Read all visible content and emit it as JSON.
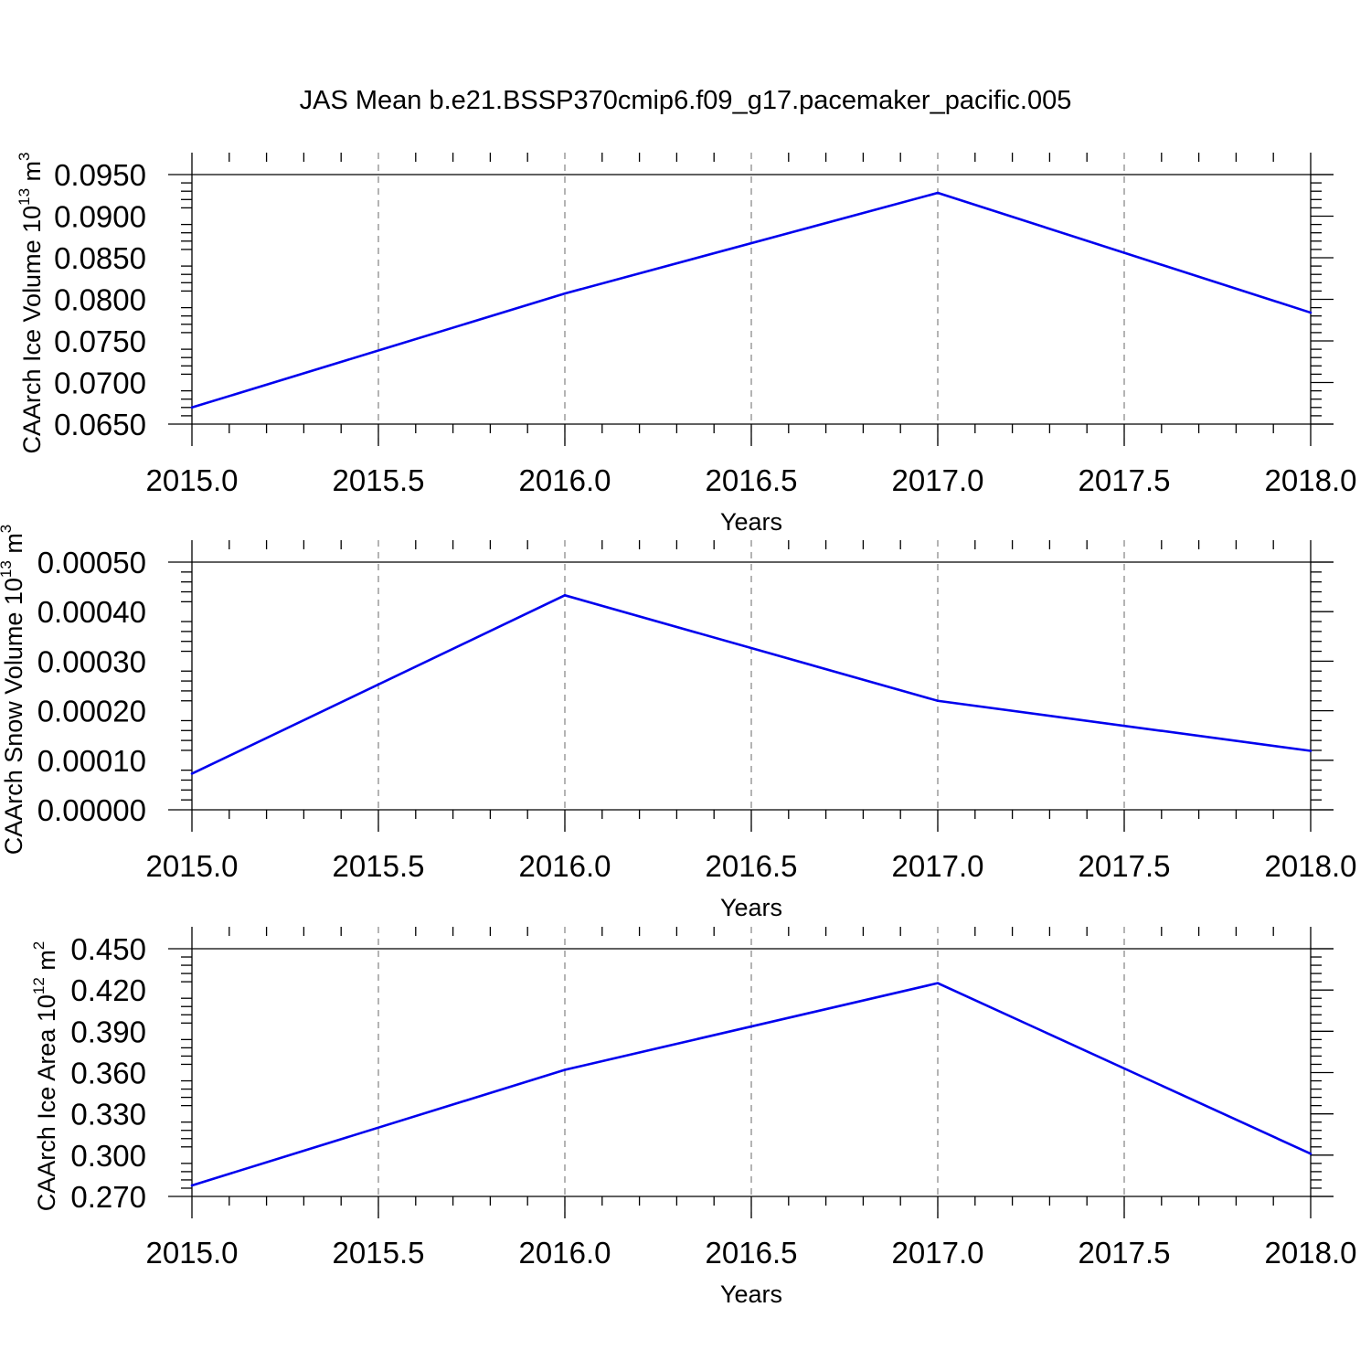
{
  "title": "JAS Mean b.e21.BSSP370cmip6.f09_g17.pacemaker_pacific.005",
  "line_color": "#0000ee",
  "chart_data": [
    {
      "type": "line",
      "title": "JAS Mean b.e21.BSSP370cmip6.f09_g17.pacemaker_pacific.005",
      "xlabel": "Years",
      "ylabel": {
        "text": "CAArch Ice Volume 10",
        "exp": "13",
        "unit": " m",
        "unit_exp": "3"
      },
      "xlim": [
        2015.0,
        2018.0
      ],
      "ylim": [
        0.065,
        0.095
      ],
      "xticks": [
        "2015.0",
        "2015.5",
        "2016.0",
        "2016.5",
        "2017.0",
        "2017.5",
        "2018.0"
      ],
      "yticks": [
        "0.0650",
        "0.0700",
        "0.0750",
        "0.0800",
        "0.0850",
        "0.0900",
        "0.0950"
      ],
      "grid": "x-dashed",
      "x": [
        2015,
        2016,
        2017,
        2018
      ],
      "series": [
        {
          "values": [
            0.067,
            0.0807,
            0.0928,
            0.0784
          ]
        }
      ]
    },
    {
      "type": "line",
      "xlabel": "Years",
      "ylabel": {
        "text": "CAArch Snow Volume 10",
        "exp": "13",
        "unit": " m",
        "unit_exp": "3"
      },
      "xlim": [
        2015.0,
        2018.0
      ],
      "ylim": [
        0.0,
        0.0005
      ],
      "xticks": [
        "2015.0",
        "2015.5",
        "2016.0",
        "2016.5",
        "2017.0",
        "2017.5",
        "2018.0"
      ],
      "yticks": [
        "0.00000",
        "0.00010",
        "0.00020",
        "0.00030",
        "0.00040",
        "0.00050"
      ],
      "grid": "x-dashed",
      "x": [
        2015,
        2016,
        2017,
        2018
      ],
      "series": [
        {
          "values": [
            7.3e-05,
            0.000433,
            0.00022,
            0.000119
          ]
        }
      ]
    },
    {
      "type": "line",
      "xlabel": "Years",
      "ylabel": {
        "text": "CAArch Ice Area 10",
        "exp": "12",
        "unit": " m",
        "unit_exp": "2"
      },
      "xlim": [
        2015.0,
        2018.0
      ],
      "ylim": [
        0.27,
        0.45
      ],
      "xticks": [
        "2015.0",
        "2015.5",
        "2016.0",
        "2016.5",
        "2017.0",
        "2017.5",
        "2018.0"
      ],
      "yticks": [
        "0.270",
        "0.300",
        "0.330",
        "0.360",
        "0.390",
        "0.420",
        "0.450"
      ],
      "grid": "x-dashed",
      "x": [
        2015,
        2016,
        2017,
        2018
      ],
      "series": [
        {
          "values": [
            0.278,
            0.362,
            0.425,
            0.301
          ]
        }
      ]
    }
  ]
}
